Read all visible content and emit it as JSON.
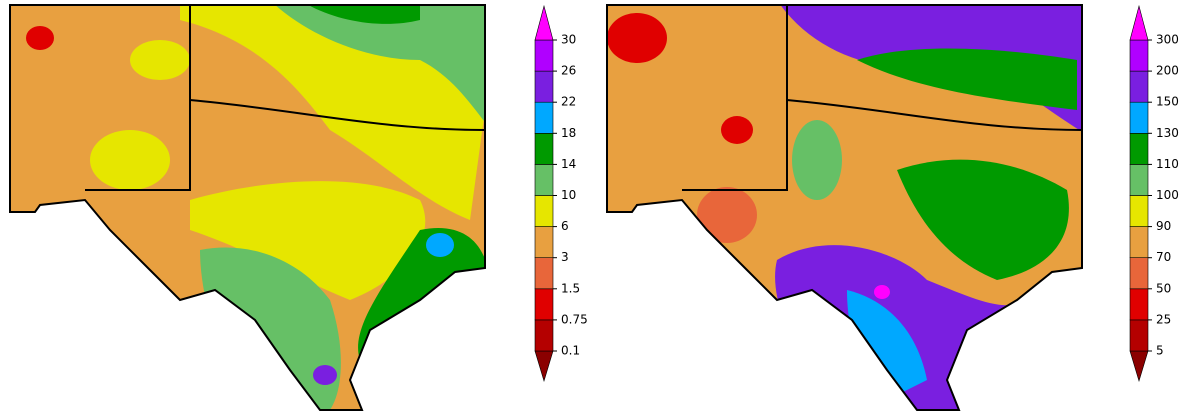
{
  "maps": [
    {
      "colorbar": {
        "labels": [
          "0.1",
          "0.75",
          "1.5",
          "3",
          "6",
          "10",
          "14",
          "18",
          "22",
          "26",
          "30"
        ],
        "colors": [
          "#8b0000",
          "#b40000",
          "#e00000",
          "#e8663a",
          "#e8a040",
          "#e6e600",
          "#66c066",
          "#009a00",
          "#00a8ff",
          "#7a1fe0",
          "#b000ff",
          "#ff00ff"
        ]
      }
    },
    {
      "colorbar": {
        "labels": [
          "5",
          "25",
          "50",
          "70",
          "90",
          "100",
          "110",
          "130",
          "150",
          "200",
          "300"
        ],
        "colors": [
          "#8b0000",
          "#b40000",
          "#e00000",
          "#e8663a",
          "#e8a040",
          "#e6e600",
          "#66c066",
          "#009a00",
          "#00a8ff",
          "#7a1fe0",
          "#b000ff",
          "#ff00ff"
        ]
      }
    }
  ]
}
